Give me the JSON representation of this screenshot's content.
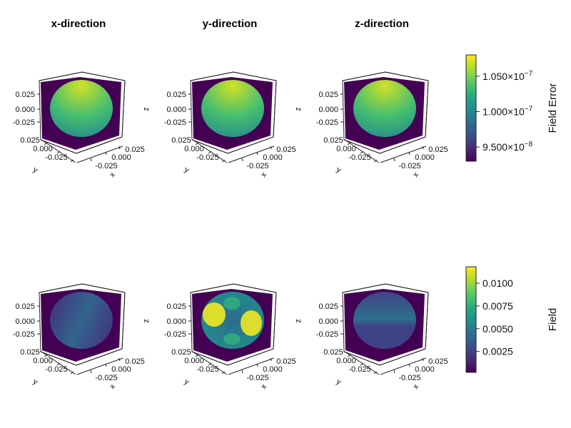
{
  "chart_data": {
    "type": "heatmap",
    "subtype": "3d-volume-panels",
    "columns": [
      "x-direction",
      "y-direction",
      "z-direction"
    ],
    "axes": {
      "x": {
        "label": "x",
        "ticks": [
          "-0.025",
          "0.000",
          "0.025"
        ]
      },
      "y": {
        "label": "y",
        "ticks": [
          "-0.025",
          "0.000",
          "0.025"
        ]
      },
      "z": {
        "label": "z",
        "ticks": [
          "-0.025",
          "0.000",
          "0.025"
        ]
      }
    },
    "colormap": "viridis",
    "rows": [
      {
        "colorbar_label": "Field Error",
        "colorbar_range": [
          9.3e-08,
          1.08e-07
        ],
        "colorbar_ticks": [
          {
            "value": 9.5e-08,
            "mantissa": "9.500",
            "exp": "−8"
          },
          {
            "value": 1e-07,
            "mantissa": "1.000",
            "exp": "−7"
          },
          {
            "value": 1.05e-07,
            "mantissa": "1.050",
            "exp": "−7"
          }
        ],
        "panels": [
          {
            "column": "x-direction",
            "pattern": "radial",
            "sphere_min": 1e-07,
            "sphere_max": 1.07e-07,
            "background": 9.3e-08
          },
          {
            "column": "y-direction",
            "pattern": "radial",
            "sphere_min": 1e-07,
            "sphere_max": 1.07e-07,
            "background": 9.3e-08
          },
          {
            "column": "z-direction",
            "pattern": "radial",
            "sphere_min": 1e-07,
            "sphere_max": 1.07e-07,
            "background": 9.3e-08
          }
        ]
      },
      {
        "colorbar_label": "Field",
        "colorbar_range": [
          0.0002,
          0.0118
        ],
        "colorbar_ticks": [
          {
            "value": 0.0025,
            "text": "0.0025"
          },
          {
            "value": 0.005,
            "text": "0.0050"
          },
          {
            "value": 0.0075,
            "text": "0.0075"
          },
          {
            "value": 0.01,
            "text": "0.0100"
          }
        ],
        "panels": [
          {
            "column": "x-direction",
            "pattern": "diagonal-band",
            "sphere_min": 0.002,
            "sphere_max": 0.004,
            "background": 0.0002
          },
          {
            "column": "y-direction",
            "pattern": "two-lobes",
            "sphere_min": 0.003,
            "sphere_max": 0.0115,
            "background": 0.0002
          },
          {
            "column": "z-direction",
            "pattern": "horizontal-band",
            "sphere_min": 0.0025,
            "sphere_max": 0.0045,
            "background": 0.0002
          }
        ]
      }
    ]
  }
}
